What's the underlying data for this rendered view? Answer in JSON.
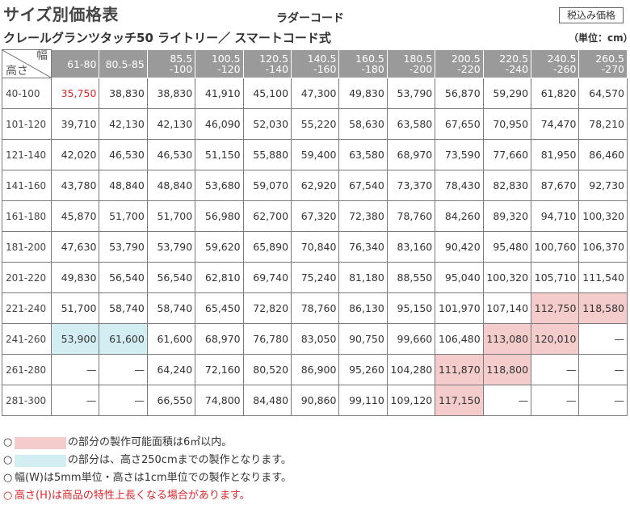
{
  "title": "サイズ別価格表",
  "subtitle": "ラダーコード",
  "product": "クレールグランツタッチ50 ライトリー／ スマートコード式",
  "tax_badge": "税込み価格",
  "unit": "（単位：cm）",
  "corner": {
    "width_label": "幅",
    "height_label": "高さ"
  },
  "columns": [
    [
      "61-80"
    ],
    [
      "80.5-85"
    ],
    [
      "85.5",
      "-100"
    ],
    [
      "100.5",
      "-120"
    ],
    [
      "120.5",
      "-140"
    ],
    [
      "140.5",
      "-160"
    ],
    [
      "160.5",
      "-180"
    ],
    [
      "180.5",
      "-200"
    ],
    [
      "200.5",
      "-220"
    ],
    [
      "220.5",
      "-240"
    ],
    [
      "240.5",
      "-260"
    ],
    [
      "260.5",
      "-270"
    ]
  ],
  "rows": [
    {
      "label": "40-100",
      "cells": [
        "35,750",
        "38,830",
        "38,830",
        "41,910",
        "45,100",
        "47,300",
        "49,830",
        "53,790",
        "56,870",
        "59,290",
        "61,820",
        "64,570"
      ]
    },
    {
      "label": "101-120",
      "cells": [
        "39,710",
        "42,130",
        "42,130",
        "46,090",
        "52,030",
        "55,220",
        "58,630",
        "63,580",
        "67,650",
        "70,950",
        "74,470",
        "78,210"
      ]
    },
    {
      "label": "121-140",
      "cells": [
        "42,020",
        "46,530",
        "46,530",
        "51,150",
        "55,880",
        "59,400",
        "63,580",
        "68,970",
        "73,590",
        "77,660",
        "81,950",
        "86,460"
      ]
    },
    {
      "label": "141-160",
      "cells": [
        "43,780",
        "48,840",
        "48,840",
        "53,680",
        "59,070",
        "62,920",
        "67,540",
        "73,370",
        "78,430",
        "82,830",
        "87,670",
        "92,730"
      ]
    },
    {
      "label": "161-180",
      "cells": [
        "45,870",
        "51,700",
        "51,700",
        "56,980",
        "62,700",
        "67,320",
        "72,380",
        "78,760",
        "84,260",
        "89,320",
        "94,710",
        "100,320"
      ]
    },
    {
      "label": "181-200",
      "cells": [
        "47,630",
        "53,790",
        "53,790",
        "59,620",
        "65,890",
        "70,840",
        "76,340",
        "83,160",
        "90,420",
        "95,480",
        "100,760",
        "106,370"
      ]
    },
    {
      "label": "201-220",
      "cells": [
        "49,830",
        "56,540",
        "56,540",
        "62,810",
        "69,740",
        "75,240",
        "81,180",
        "88,550",
        "95,040",
        "100,320",
        "105,710",
        "111,540"
      ]
    },
    {
      "label": "221-240",
      "cells": [
        "51,700",
        "58,740",
        "58,740",
        "65,450",
        "72,820",
        "78,760",
        "86,130",
        "95,150",
        "101,970",
        "107,140",
        "112,750",
        "118,580"
      ]
    },
    {
      "label": "241-260",
      "cells": [
        "53,900",
        "61,600",
        "61,600",
        "68,970",
        "76,780",
        "83,050",
        "90,750",
        "99,660",
        "106,480",
        "113,080",
        "120,010",
        "—"
      ]
    },
    {
      "label": "261-280",
      "cells": [
        "—",
        "—",
        "64,240",
        "72,160",
        "80,520",
        "86,900",
        "95,260",
        "104,280",
        "111,870",
        "118,800",
        "—",
        "—"
      ]
    },
    {
      "label": "281-300",
      "cells": [
        "—",
        "—",
        "66,550",
        "74,800",
        "84,480",
        "90,860",
        "99,110",
        "109,120",
        "117,150",
        "—",
        "—",
        "—"
      ]
    }
  ],
  "highlight": {
    "red_text": [
      [
        0,
        0
      ]
    ],
    "red": [
      [
        7,
        10
      ],
      [
        7,
        11
      ],
      [
        8,
        9
      ],
      [
        8,
        10
      ],
      [
        9,
        8
      ],
      [
        9,
        9
      ],
      [
        10,
        8
      ]
    ],
    "blue": [
      [
        8,
        0
      ],
      [
        8,
        1
      ]
    ]
  },
  "colors": {
    "red_fill": "#f4cccc",
    "blue_fill": "#d3eef3",
    "warn_text": "#e0262b",
    "header_fill": "#9a9a9a"
  },
  "notes": {
    "red_area": "の部分の製作可能面積は6㎡以内。",
    "blue_area": "の部分は、高さ250cmまでの製作となります。",
    "units": "幅(W)は5mm単位・高さは1cm単位での製作となります。",
    "warning": "高さ(H)は商品の特性上長くなる場合があります。",
    "bullet": "○"
  }
}
